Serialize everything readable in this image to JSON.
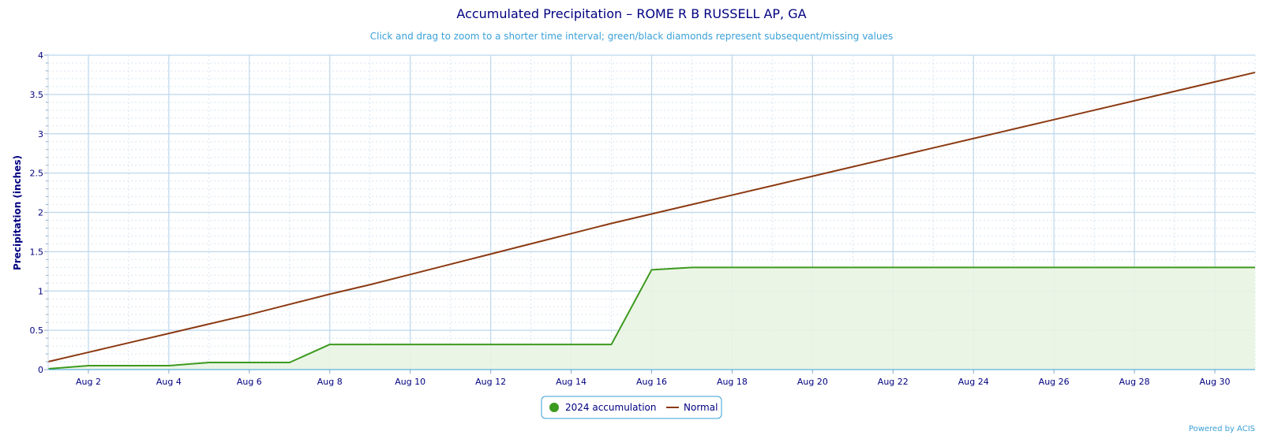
{
  "chart_data": {
    "type": "line",
    "title": "Accumulated Precipitation – ROME R B RUSSELL AP, GA",
    "subtitle": "Click and drag to zoom to a shorter time interval; green/black diamonds represent subsequent/missing values",
    "ylabel": "Precipitation (inches)",
    "xlabel": "",
    "ylim": [
      0,
      4
    ],
    "xlim": [
      1,
      31
    ],
    "yticks": [
      "0",
      "0.5",
      "1",
      "1.5",
      "2",
      "2.5",
      "3",
      "3.5",
      "4"
    ],
    "xticks": [
      {
        "day": 2,
        "label": "Aug 2"
      },
      {
        "day": 4,
        "label": "Aug 4"
      },
      {
        "day": 6,
        "label": "Aug 6"
      },
      {
        "day": 8,
        "label": "Aug 8"
      },
      {
        "day": 10,
        "label": "Aug 10"
      },
      {
        "day": 12,
        "label": "Aug 12"
      },
      {
        "day": 14,
        "label": "Aug 14"
      },
      {
        "day": 16,
        "label": "Aug 16"
      },
      {
        "day": 18,
        "label": "Aug 18"
      },
      {
        "day": 20,
        "label": "Aug 20"
      },
      {
        "day": 22,
        "label": "Aug 22"
      },
      {
        "day": 24,
        "label": "Aug 24"
      },
      {
        "day": 26,
        "label": "Aug 26"
      },
      {
        "day": 28,
        "label": "Aug 28"
      },
      {
        "day": 30,
        "label": "Aug 30"
      }
    ],
    "grid": true,
    "legend_position": "bottom-center",
    "series": [
      {
        "name": "2024 accumulation",
        "color": "#3c9a1e",
        "area_fill": "#e9f4e3",
        "x": [
          1,
          2,
          3,
          4,
          5,
          6,
          7,
          8,
          9,
          10,
          11,
          12,
          13,
          14,
          15,
          16,
          17,
          18,
          19,
          20,
          21,
          22,
          23,
          24,
          25,
          26,
          27,
          28,
          29,
          30,
          31
        ],
        "values": [
          0.01,
          0.05,
          0.05,
          0.05,
          0.09,
          0.09,
          0.09,
          0.32,
          0.32,
          0.32,
          0.32,
          0.32,
          0.32,
          0.32,
          0.32,
          1.27,
          1.3,
          1.3,
          1.3,
          1.3,
          1.3,
          1.3,
          1.3,
          1.3,
          1.3,
          1.3,
          1.3,
          1.3,
          1.3,
          1.3,
          1.3
        ]
      },
      {
        "name": "Normal",
        "color": "#8b3a12",
        "x": [
          1,
          2,
          3,
          4,
          5,
          6,
          7,
          8,
          9,
          10,
          11,
          12,
          13,
          14,
          15,
          16,
          17,
          18,
          19,
          20,
          21,
          22,
          23,
          24,
          25,
          26,
          27,
          28,
          29,
          30,
          31
        ],
        "values": [
          0.1,
          0.22,
          0.34,
          0.46,
          0.58,
          0.7,
          0.83,
          0.96,
          1.08,
          1.21,
          1.34,
          1.47,
          1.6,
          1.73,
          1.86,
          1.98,
          2.1,
          2.22,
          2.34,
          2.46,
          2.58,
          2.7,
          2.82,
          2.94,
          3.06,
          3.18,
          3.3,
          3.42,
          3.54,
          3.66,
          3.78
        ]
      }
    ]
  },
  "credit": "Powered by ACIS"
}
